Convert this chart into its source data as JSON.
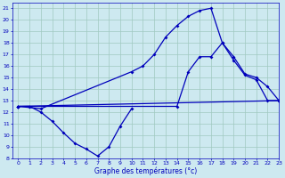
{
  "xlabel": "Graphe des températures (°c)",
  "xlim": [
    -0.5,
    23
  ],
  "ylim": [
    8,
    21.5
  ],
  "yticks": [
    8,
    9,
    10,
    11,
    12,
    13,
    14,
    15,
    16,
    17,
    18,
    19,
    20,
    21
  ],
  "xticks": [
    0,
    1,
    2,
    3,
    4,
    5,
    6,
    7,
    8,
    9,
    10,
    11,
    12,
    13,
    14,
    15,
    16,
    17,
    18,
    19,
    20,
    21,
    22,
    23
  ],
  "bg_color": "#cde9f0",
  "line_color": "#0000bb",
  "grid_color": "#a0c8c0",
  "series": [
    {
      "x": [
        0,
        1,
        2,
        3,
        4,
        5,
        6,
        7,
        8,
        9,
        10
      ],
      "y": [
        12.5,
        12.5,
        12.0,
        11.2,
        10.2,
        9.3,
        8.8,
        8.2,
        9.0,
        10.8,
        12.3
      ]
    },
    {
      "x": [
        0,
        2,
        10,
        11,
        12,
        13,
        14,
        15,
        16,
        17,
        18,
        19,
        20,
        21,
        22,
        23
      ],
      "y": [
        12.5,
        12.3,
        15.5,
        16.0,
        17.0,
        18.5,
        19.5,
        20.3,
        20.8,
        21.0,
        18.0,
        16.8,
        15.3,
        15.0,
        14.2,
        13.0
      ]
    },
    {
      "x": [
        0,
        23
      ],
      "y": [
        12.5,
        13.0
      ]
    },
    {
      "x": [
        0,
        14,
        15,
        16,
        17,
        18,
        19,
        20,
        21,
        22,
        23
      ],
      "y": [
        12.5,
        12.5,
        15.5,
        16.8,
        16.8,
        18.0,
        16.5,
        15.2,
        14.8,
        13.0,
        13.0
      ]
    }
  ]
}
